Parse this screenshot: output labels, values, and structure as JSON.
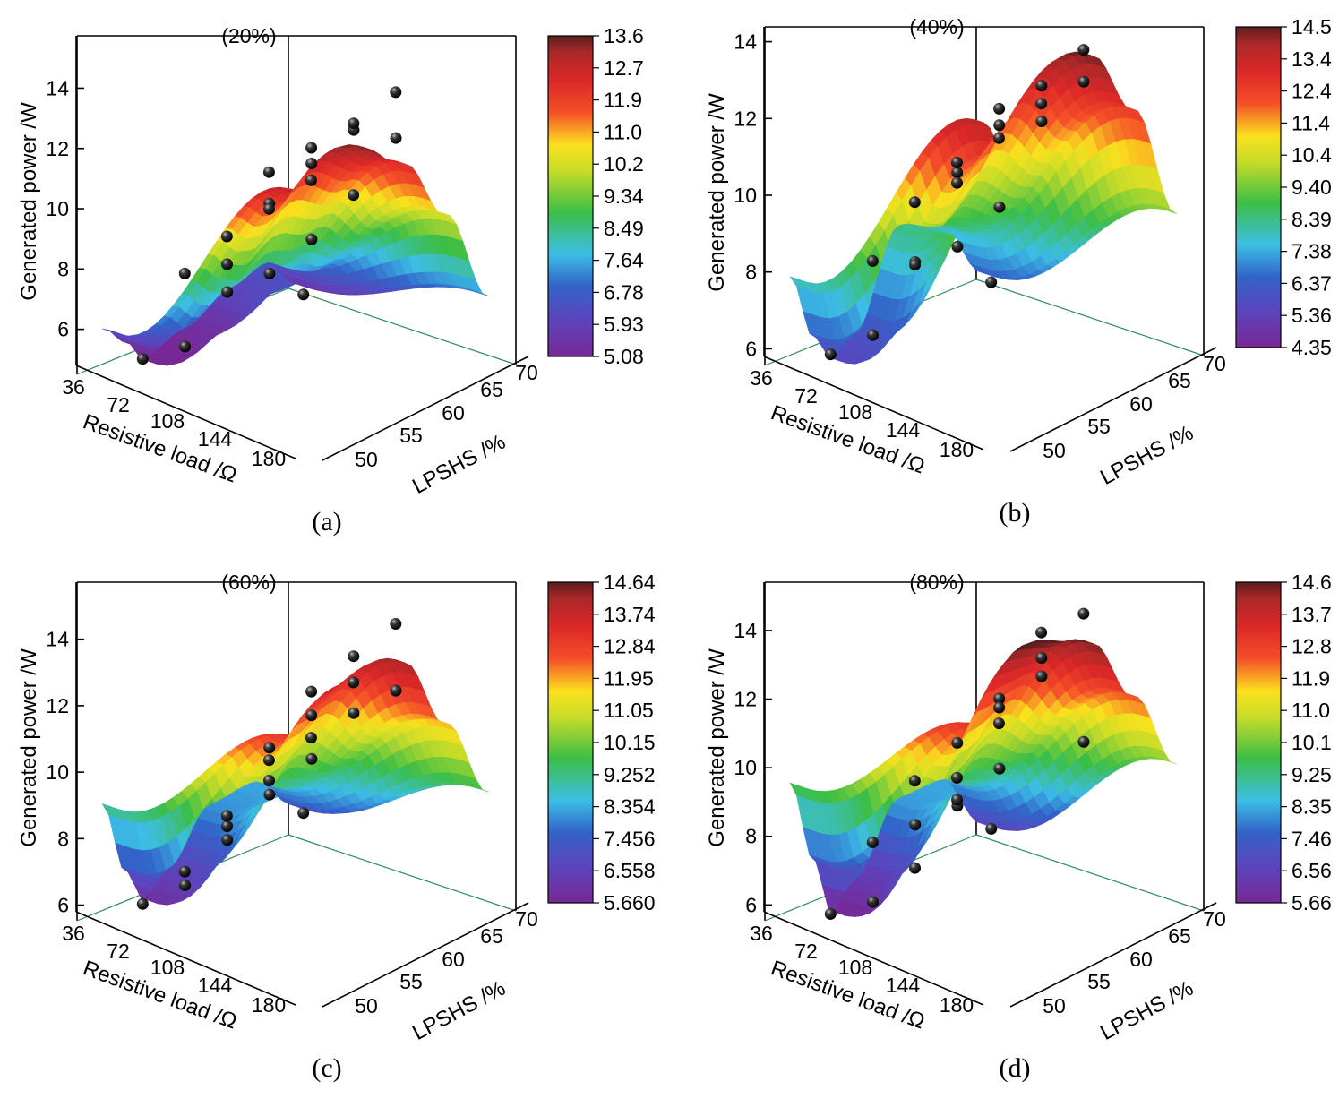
{
  "figure": {
    "description_axes": {
      "x_label": "Resistive load /Ω",
      "y_label": "LPSHS /%",
      "z_label": "Generated power /W"
    }
  },
  "chart_data": [
    {
      "type": "surface3d",
      "panel_label": "(a)",
      "title": "(20%)",
      "xlabel": "Resistive load /Ω",
      "ylabel": "LPSHS /%",
      "zlabel": "Generated power /W",
      "x_ticks": [
        "36",
        "72",
        "108",
        "144",
        "180"
      ],
      "y_ticks": [
        "50",
        "55",
        "60",
        "65",
        "70"
      ],
      "z_ticks": [
        "6",
        "8",
        "10",
        "12",
        "14"
      ],
      "xlim": [
        20,
        200
      ],
      "ylim": [
        45,
        72
      ],
      "zlim": [
        4.8,
        15.5
      ],
      "colorbar_ticks": [
        "13.6",
        "12.7",
        "11.9",
        "11.0",
        "10.2",
        "9.34",
        "8.49",
        "7.64",
        "6.78",
        "5.93",
        "5.08"
      ],
      "colorbar_range": [
        5.08,
        13.6
      ],
      "profile_at_lpshs_50": [
        [
          36,
          5.5
        ],
        [
          60,
          6.5
        ],
        [
          90,
          6.1
        ],
        [
          130,
          5.3
        ],
        [
          165,
          4.8
        ],
        [
          180,
          5.6
        ],
        [
          200,
          6.3
        ]
      ],
      "profile_at_lpshs_70": [
        [
          36,
          7.2
        ],
        [
          72,
          10.4
        ],
        [
          108,
          12.6
        ],
        [
          144,
          13.6
        ],
        [
          180,
          12.4
        ],
        [
          200,
          13.0
        ]
      ],
      "points": [
        {
          "x": 36,
          "y": 49,
          "z": 5.2
        },
        {
          "x": 72,
          "y": 50,
          "z": 6.5
        },
        {
          "x": 108,
          "y": 50,
          "z": 6.4
        },
        {
          "x": 144,
          "y": 50,
          "z": 5.1
        },
        {
          "x": 180,
          "y": 50,
          "z": 5.2
        },
        {
          "x": 72,
          "y": 55,
          "z": 8.1
        },
        {
          "x": 108,
          "y": 55,
          "z": 9.8
        },
        {
          "x": 144,
          "y": 55,
          "z": 8.3
        },
        {
          "x": 180,
          "y": 55,
          "z": 8.5
        },
        {
          "x": 72,
          "y": 60,
          "z": 12.2
        },
        {
          "x": 108,
          "y": 60,
          "z": 11.6
        },
        {
          "x": 144,
          "y": 60,
          "z": 10.6
        },
        {
          "x": 180,
          "y": 60,
          "z": 10.2
        },
        {
          "x": 108,
          "y": 65,
          "z": 13.4
        },
        {
          "x": 144,
          "y": 65,
          "z": 13.1
        },
        {
          "x": 180,
          "y": 65,
          "z": 12.8
        },
        {
          "x": 72,
          "y": 65,
          "z": 12.4
        },
        {
          "x": 180,
          "y": 70,
          "z": 13.0
        },
        {
          "x": 108,
          "y": 70,
          "z": 14.9
        },
        {
          "x": 144,
          "y": 70,
          "z": 12.0
        }
      ]
    },
    {
      "type": "surface3d",
      "panel_label": "(b)",
      "title": "(40%)",
      "xlabel": "Resistive load /Ω",
      "ylabel": "LPSHS /%",
      "zlabel": "Generated power /W",
      "x_ticks": [
        "36",
        "72",
        "108",
        "144",
        "180"
      ],
      "y_ticks": [
        "50",
        "55",
        "60",
        "65",
        "70"
      ],
      "z_ticks": [
        "6",
        "8",
        "10",
        "12",
        "14"
      ],
      "xlim": [
        20,
        200
      ],
      "ylim": [
        45,
        72
      ],
      "zlim": [
        5.8,
        14.2
      ],
      "colorbar_ticks": [
        "14.5",
        "13.4",
        "12.4",
        "11.4",
        "10.4",
        "9.40",
        "8.39",
        "7.38",
        "6.37",
        "5.36",
        "4.35"
      ],
      "colorbar_range": [
        4.35,
        14.5
      ],
      "profile_at_lpshs_50": [
        [
          36,
          6.4
        ],
        [
          72,
          8.0
        ],
        [
          108,
          8.4
        ],
        [
          144,
          6.0
        ],
        [
          165,
          5.6
        ],
        [
          180,
          6.3
        ],
        [
          200,
          8.1
        ]
      ],
      "profile_at_lpshs_70": [
        [
          36,
          9.6
        ],
        [
          72,
          12.7
        ],
        [
          108,
          14.5
        ],
        [
          144,
          13.5
        ],
        [
          180,
          12.6
        ],
        [
          200,
          13.8
        ]
      ],
      "points": [
        {
          "x": 36,
          "y": 49,
          "z": 6.2
        },
        {
          "x": 72,
          "y": 50,
          "z": 7.6
        },
        {
          "x": 108,
          "y": 50,
          "z": 7.6
        },
        {
          "x": 144,
          "y": 50,
          "z": 6.1
        },
        {
          "x": 180,
          "y": 50,
          "z": 6.0
        },
        {
          "x": 72,
          "y": 55,
          "z": 9.0
        },
        {
          "x": 108,
          "y": 55,
          "z": 10.3
        },
        {
          "x": 144,
          "y": 55,
          "z": 8.3
        },
        {
          "x": 180,
          "y": 55,
          "z": 8.8
        },
        {
          "x": 72,
          "y": 60,
          "z": 11.6
        },
        {
          "x": 108,
          "y": 60,
          "z": 11.9
        },
        {
          "x": 144,
          "y": 60,
          "z": 10.8
        },
        {
          "x": 180,
          "y": 60,
          "z": 10.7
        },
        {
          "x": 108,
          "y": 65,
          "z": 13.3
        },
        {
          "x": 144,
          "y": 65,
          "z": 13.1
        },
        {
          "x": 180,
          "y": 65,
          "z": 12.1
        },
        {
          "x": 72,
          "y": 65,
          "z": 13.0
        },
        {
          "x": 180,
          "y": 70,
          "z": 13.1
        },
        {
          "x": 108,
          "y": 70,
          "z": 14.6
        },
        {
          "x": 144,
          "y": 70,
          "z": 13.6
        }
      ]
    },
    {
      "type": "surface3d",
      "panel_label": "(c)",
      "title": "(60%)",
      "xlabel": "Resistive load /Ω",
      "ylabel": "LPSHS /%",
      "zlabel": "Generated power /W",
      "x_ticks": [
        "36",
        "72",
        "108",
        "144",
        "180"
      ],
      "y_ticks": [
        "50",
        "55",
        "60",
        "65",
        "70"
      ],
      "z_ticks": [
        "6",
        "8",
        "10",
        "12",
        "14"
      ],
      "xlim": [
        20,
        200
      ],
      "ylim": [
        45,
        72
      ],
      "zlim": [
        5.8,
        15.5
      ],
      "colorbar_ticks": [
        "14.64",
        "13.74",
        "12.84",
        "11.95",
        "11.05",
        "10.15",
        "9.252",
        "8.354",
        "7.456",
        "6.558",
        "5.660"
      ],
      "colorbar_range": [
        5.66,
        14.64
      ],
      "profile_at_lpshs_50": [
        [
          36,
          7.2
        ],
        [
          72,
          8.3
        ],
        [
          108,
          8.1
        ],
        [
          144,
          6.6
        ],
        [
          165,
          6.0
        ],
        [
          180,
          7.0
        ],
        [
          200,
          9.3
        ]
      ],
      "profile_at_lpshs_70": [
        [
          36,
          9.5
        ],
        [
          72,
          12.0
        ],
        [
          108,
          14.3
        ],
        [
          144,
          14.0
        ],
        [
          180,
          12.8
        ],
        [
          200,
          13.2
        ]
      ],
      "points": [
        {
          "x": 36,
          "y": 49,
          "z": 7.0
        },
        {
          "x": 72,
          "y": 50,
          "z": 8.1
        },
        {
          "x": 108,
          "y": 50,
          "z": 7.2
        },
        {
          "x": 144,
          "y": 50,
          "z": 6.3
        },
        {
          "x": 180,
          "y": 50,
          "z": 6.2
        },
        {
          "x": 72,
          "y": 55,
          "z": 9.6
        },
        {
          "x": 108,
          "y": 55,
          "z": 10.4
        },
        {
          "x": 144,
          "y": 55,
          "z": 8.5
        },
        {
          "x": 180,
          "y": 55,
          "z": 7.6
        },
        {
          "x": 72,
          "y": 60,
          "z": 11.4
        },
        {
          "x": 108,
          "y": 60,
          "z": 11.8
        },
        {
          "x": 144,
          "y": 60,
          "z": 10.3
        },
        {
          "x": 180,
          "y": 60,
          "z": 9.7
        },
        {
          "x": 108,
          "y": 65,
          "z": 14.0
        },
        {
          "x": 144,
          "y": 65,
          "z": 13.4
        },
        {
          "x": 180,
          "y": 65,
          "z": 11.8
        },
        {
          "x": 72,
          "y": 65,
          "z": 12.5
        },
        {
          "x": 180,
          "y": 70,
          "z": 12.9
        },
        {
          "x": 108,
          "y": 70,
          "z": 15.4
        },
        {
          "x": 144,
          "y": 70,
          "z": 14.1
        }
      ]
    },
    {
      "type": "surface3d",
      "panel_label": "(d)",
      "title": "(80%)",
      "xlabel": "Resistive load /Ω",
      "ylabel": "LPSHS /%",
      "zlabel": "Generated power /W",
      "x_ticks": [
        "36",
        "72",
        "108",
        "144",
        "180"
      ],
      "y_ticks": [
        "50",
        "55",
        "60",
        "65",
        "70"
      ],
      "z_ticks": [
        "6",
        "8",
        "10",
        "12",
        "14"
      ],
      "xlim": [
        20,
        200
      ],
      "ylim": [
        45,
        72
      ],
      "zlim": [
        5.8,
        15.2
      ],
      "colorbar_ticks": [
        "14.6",
        "13.7",
        "12.8",
        "11.9",
        "11.0",
        "10.1",
        "9.25",
        "8.35",
        "7.46",
        "6.56",
        "5.66"
      ],
      "colorbar_range": [
        5.66,
        14.6
      ],
      "profile_at_lpshs_50": [
        [
          36,
          6.6
        ],
        [
          72,
          8.3
        ],
        [
          108,
          8.2
        ],
        [
          144,
          6.3
        ],
        [
          165,
          5.6
        ],
        [
          180,
          7.3
        ],
        [
          200,
          9.8
        ]
      ],
      "profile_at_lpshs_70": [
        [
          36,
          10.2
        ],
        [
          72,
          12.6
        ],
        [
          108,
          14.6
        ],
        [
          144,
          15.0
        ],
        [
          180,
          12.9
        ],
        [
          200,
          13.3
        ]
      ],
      "points": [
        {
          "x": 36,
          "y": 49,
          "z": 6.5
        },
        {
          "x": 72,
          "y": 50,
          "z": 7.7
        },
        {
          "x": 108,
          "y": 50,
          "z": 7.6
        },
        {
          "x": 144,
          "y": 50,
          "z": 5.8
        },
        {
          "x": 180,
          "y": 50,
          "z": 5.9
        },
        {
          "x": 72,
          "y": 55,
          "z": 9.2
        },
        {
          "x": 108,
          "y": 55,
          "z": 10.4
        },
        {
          "x": 144,
          "y": 55,
          "z": 7.2
        },
        {
          "x": 180,
          "y": 55,
          "z": 8.4
        },
        {
          "x": 72,
          "y": 60,
          "z": 12.3
        },
        {
          "x": 108,
          "y": 60,
          "z": 12.1
        },
        {
          "x": 144,
          "y": 60,
          "z": 9.6
        },
        {
          "x": 180,
          "y": 60,
          "z": 10.6
        },
        {
          "x": 108,
          "y": 65,
          "z": 13.7
        },
        {
          "x": 144,
          "y": 65,
          "z": 12.7
        },
        {
          "x": 180,
          "y": 65,
          "z": 11.1
        },
        {
          "x": 72,
          "y": 65,
          "z": 10.8
        },
        {
          "x": 180,
          "y": 70,
          "z": 13.1
        },
        {
          "x": 108,
          "y": 70,
          "z": 15.4
        },
        {
          "x": 144,
          "y": 70,
          "z": 15.3
        }
      ]
    }
  ]
}
